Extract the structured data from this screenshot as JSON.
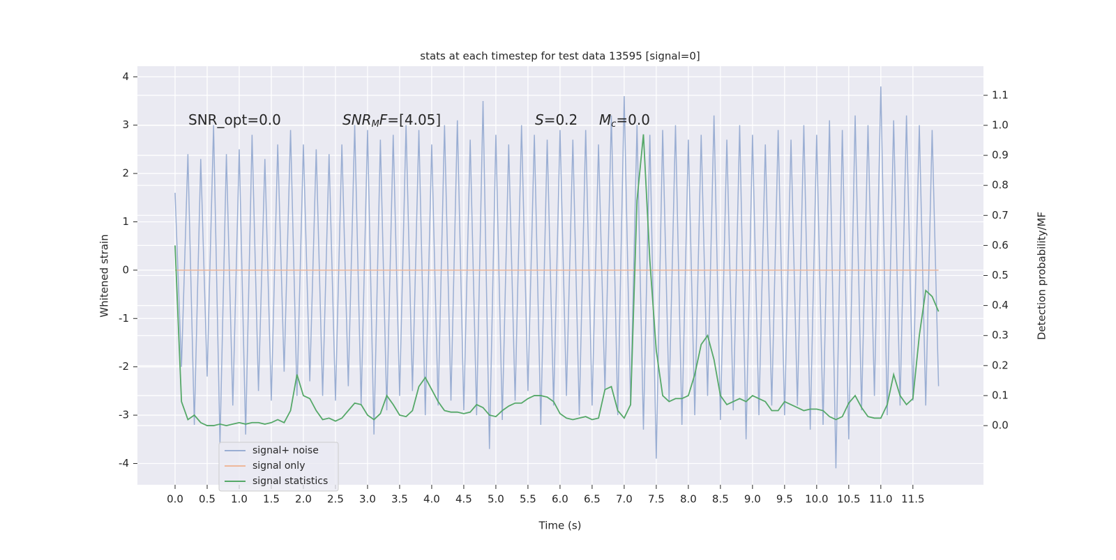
{
  "chart_data": {
    "type": "line",
    "title": "stats at each timestep for test data 13595 [signal=0]",
    "x_label": "Time (s)",
    "y_label": "Whitened strain",
    "y2_label": "Detection probability/MF",
    "annotations": [
      [
        {
          "text": "SNR_opt=0.0",
          "italic": false,
          "sub": false
        }
      ],
      [
        {
          "text": "SNR",
          "italic": true,
          "sub": false
        },
        {
          "text": "M",
          "italic": true,
          "sub": true
        },
        {
          "text": "F",
          "italic": true,
          "sub": false
        },
        {
          "text": "=[4.05]",
          "italic": false,
          "sub": false
        }
      ],
      [
        {
          "text": "S",
          "italic": true,
          "sub": false
        },
        {
          "text": "=0.2",
          "italic": false,
          "sub": false
        }
      ],
      [
        {
          "text": "M",
          "italic": true,
          "sub": false
        },
        {
          "text": "c",
          "italic": true,
          "sub": true
        },
        {
          "text": "=0.0",
          "italic": false,
          "sub": false
        }
      ]
    ],
    "x": [
      0,
      0.1,
      0.2,
      0.3,
      0.4,
      0.5,
      0.6,
      0.7,
      0.8,
      0.9,
      1,
      1.1,
      1.2,
      1.3,
      1.4,
      1.5,
      1.6,
      1.7,
      1.8,
      1.9,
      2,
      2.1,
      2.2,
      2.3,
      2.4,
      2.5,
      2.6,
      2.7,
      2.8,
      2.9,
      3,
      3.1,
      3.2,
      3.3,
      3.4,
      3.5,
      3.6,
      3.7,
      3.8,
      3.9,
      4,
      4.1,
      4.2,
      4.3,
      4.4,
      4.5,
      4.6,
      4.7,
      4.8,
      4.9,
      5,
      5.1,
      5.2,
      5.3,
      5.4,
      5.5,
      5.6,
      5.7,
      5.8,
      5.9,
      6,
      6.1,
      6.2,
      6.3,
      6.4,
      6.5,
      6.6,
      6.7,
      6.8,
      6.9,
      7,
      7.1,
      7.2,
      7.3,
      7.4,
      7.5,
      7.6,
      7.7,
      7.8,
      7.9,
      8,
      8.1,
      8.2,
      8.3,
      8.4,
      8.5,
      8.6,
      8.7,
      8.8,
      8.9,
      9,
      9.1,
      9.2,
      9.3,
      9.4,
      9.5,
      9.6,
      9.7,
      9.8,
      9.9,
      10,
      10.1,
      10.2,
      10.3,
      10.4,
      10.5,
      10.6,
      10.7,
      10.8,
      10.9,
      11,
      11.1,
      11.2,
      11.3,
      11.4,
      11.5,
      11.6,
      11.7,
      11.8,
      11.9
    ],
    "series": [
      {
        "name": "signal+ noise",
        "color": "#9aaed3",
        "axis": "y",
        "values": [
          1.6,
          -2.0,
          2.4,
          -3.2,
          2.3,
          -2.2,
          3.0,
          -3.6,
          2.4,
          -2.8,
          2.5,
          -3.4,
          2.8,
          -2.5,
          2.3,
          -2.7,
          2.6,
          -2.1,
          2.9,
          -2.6,
          2.6,
          -2.3,
          2.5,
          -2.6,
          2.4,
          -2.7,
          2.6,
          -2.4,
          3.0,
          -2.8,
          2.9,
          -3.4,
          2.7,
          -2.9,
          2.8,
          -2.6,
          3.0,
          -2.5,
          2.9,
          -3.0,
          2.6,
          -2.8,
          3.0,
          -2.7,
          3.1,
          -2.9,
          2.7,
          -3.0,
          3.5,
          -3.7,
          2.8,
          -3.1,
          2.6,
          -2.7,
          3.0,
          -2.5,
          2.8,
          -3.2,
          2.7,
          -2.8,
          2.9,
          -2.6,
          2.7,
          -3.0,
          2.9,
          -2.8,
          2.6,
          -2.5,
          3.2,
          -3.0,
          3.6,
          -2.8,
          3.0,
          -3.3,
          2.8,
          -3.9,
          2.9,
          -2.7,
          3.0,
          -3.2,
          2.7,
          -3.0,
          2.8,
          -2.6,
          3.2,
          -3.1,
          2.7,
          -2.9,
          3.0,
          -3.5,
          2.8,
          -3.0,
          2.6,
          -2.8,
          2.9,
          -3.0,
          2.7,
          -2.8,
          3.0,
          -3.3,
          2.8,
          -3.2,
          3.1,
          -4.1,
          2.9,
          -3.5,
          3.2,
          -2.9,
          3.0,
          -2.6,
          3.8,
          -3.0,
          3.1,
          -2.8,
          3.2,
          -2.7,
          3.0,
          -2.8,
          2.9,
          -2.4
        ]
      },
      {
        "name": "signal only",
        "color": "#eeb79a",
        "axis": "y",
        "values": [
          0,
          0,
          0,
          0,
          0,
          0,
          0,
          0,
          0,
          0,
          0,
          0,
          0,
          0,
          0,
          0,
          0,
          0,
          0,
          0,
          0,
          0,
          0,
          0,
          0,
          0,
          0,
          0,
          0,
          0,
          0,
          0,
          0,
          0,
          0,
          0,
          0,
          0,
          0,
          0,
          0,
          0,
          0,
          0,
          0,
          0,
          0,
          0,
          0,
          0,
          0,
          0,
          0,
          0,
          0,
          0,
          0,
          0,
          0,
          0,
          0,
          0,
          0,
          0,
          0,
          0,
          0,
          0,
          0,
          0,
          0,
          0,
          0,
          0,
          0,
          0,
          0,
          0,
          0,
          0,
          0,
          0,
          0,
          0,
          0,
          0,
          0,
          0,
          0,
          0,
          0,
          0,
          0,
          0,
          0,
          0,
          0,
          0,
          0,
          0,
          0,
          0,
          0,
          0,
          0,
          0,
          0,
          0,
          0,
          0,
          0,
          0,
          0,
          0,
          0,
          0,
          0,
          0,
          0,
          0
        ]
      },
      {
        "name": "signal statistics",
        "color": "#55a868",
        "axis": "y2",
        "values": [
          0.6,
          0.08,
          0.02,
          0.035,
          0.01,
          0.0,
          0.0,
          0.005,
          0.0,
          0.005,
          0.01,
          0.005,
          0.01,
          0.01,
          0.005,
          0.01,
          0.02,
          0.01,
          0.05,
          0.17,
          0.1,
          0.09,
          0.05,
          0.02,
          0.025,
          0.015,
          0.025,
          0.05,
          0.075,
          0.07,
          0.035,
          0.02,
          0.04,
          0.1,
          0.07,
          0.035,
          0.03,
          0.05,
          0.13,
          0.16,
          0.12,
          0.08,
          0.05,
          0.045,
          0.045,
          0.04,
          0.045,
          0.07,
          0.06,
          0.035,
          0.03,
          0.05,
          0.065,
          0.075,
          0.075,
          0.09,
          0.1,
          0.1,
          0.095,
          0.08,
          0.04,
          0.025,
          0.02,
          0.025,
          0.03,
          0.02,
          0.025,
          0.12,
          0.13,
          0.05,
          0.025,
          0.07,
          0.75,
          0.97,
          0.55,
          0.25,
          0.1,
          0.08,
          0.09,
          0.09,
          0.1,
          0.17,
          0.27,
          0.3,
          0.22,
          0.1,
          0.07,
          0.08,
          0.09,
          0.08,
          0.1,
          0.09,
          0.08,
          0.05,
          0.05,
          0.08,
          0.07,
          0.06,
          0.05,
          0.055,
          0.055,
          0.05,
          0.03,
          0.02,
          0.03,
          0.075,
          0.1,
          0.06,
          0.03,
          0.025,
          0.025,
          0.07,
          0.17,
          0.1,
          0.07,
          0.09,
          0.3,
          0.45,
          0.43,
          0.38
        ]
      }
    ],
    "xlim": [
      -0.587,
      12.6
    ],
    "ylim": [
      -4.44,
      4.22
    ],
    "y2lim": [
      -0.197,
      1.197
    ],
    "xticks": [
      {
        "value": 0,
        "label": "0.0"
      },
      {
        "value": 0.5,
        "label": "0.5"
      },
      {
        "value": 1,
        "label": "1.0"
      },
      {
        "value": 1.5,
        "label": "1.5"
      },
      {
        "value": 2,
        "label": "2.0"
      },
      {
        "value": 2.5,
        "label": "2.5"
      },
      {
        "value": 3,
        "label": "3.0"
      },
      {
        "value": 3.5,
        "label": "3.5"
      },
      {
        "value": 4,
        "label": "4.0"
      },
      {
        "value": 4.5,
        "label": "4.5"
      },
      {
        "value": 5,
        "label": "5.0"
      },
      {
        "value": 5.5,
        "label": "5.5"
      },
      {
        "value": 6,
        "label": "6.0"
      },
      {
        "value": 6.5,
        "label": "6.5"
      },
      {
        "value": 7,
        "label": "7.0"
      },
      {
        "value": 7.5,
        "label": "7.5"
      },
      {
        "value": 8,
        "label": "8.0"
      },
      {
        "value": 8.5,
        "label": "8.5"
      },
      {
        "value": 9,
        "label": "9.0"
      },
      {
        "value": 9.5,
        "label": "9.5"
      },
      {
        "value": 10,
        "label": "10.0"
      },
      {
        "value": 10.5,
        "label": "10.5"
      },
      {
        "value": 11,
        "label": "11.0"
      },
      {
        "value": 11.5,
        "label": "11.5"
      }
    ],
    "yticks": [
      -4,
      -3,
      -2,
      -1,
      0,
      1,
      2,
      3,
      4
    ],
    "y2ticks": [
      {
        "value": 0,
        "label": "0.0"
      },
      {
        "value": 0.1,
        "label": "0.1"
      },
      {
        "value": 0.2,
        "label": "0.2"
      },
      {
        "value": 0.3,
        "label": "0.3"
      },
      {
        "value": 0.4,
        "label": "0.4"
      },
      {
        "value": 0.5,
        "label": "0.5"
      },
      {
        "value": 0.6,
        "label": "0.6"
      },
      {
        "value": 0.7,
        "label": "0.7"
      },
      {
        "value": 0.8,
        "label": "0.8"
      },
      {
        "value": 0.9,
        "label": "0.9"
      },
      {
        "value": 1,
        "label": "1.0"
      },
      {
        "value": 1.1,
        "label": "1.1"
      }
    ],
    "grid": true,
    "legend": "lower left"
  }
}
